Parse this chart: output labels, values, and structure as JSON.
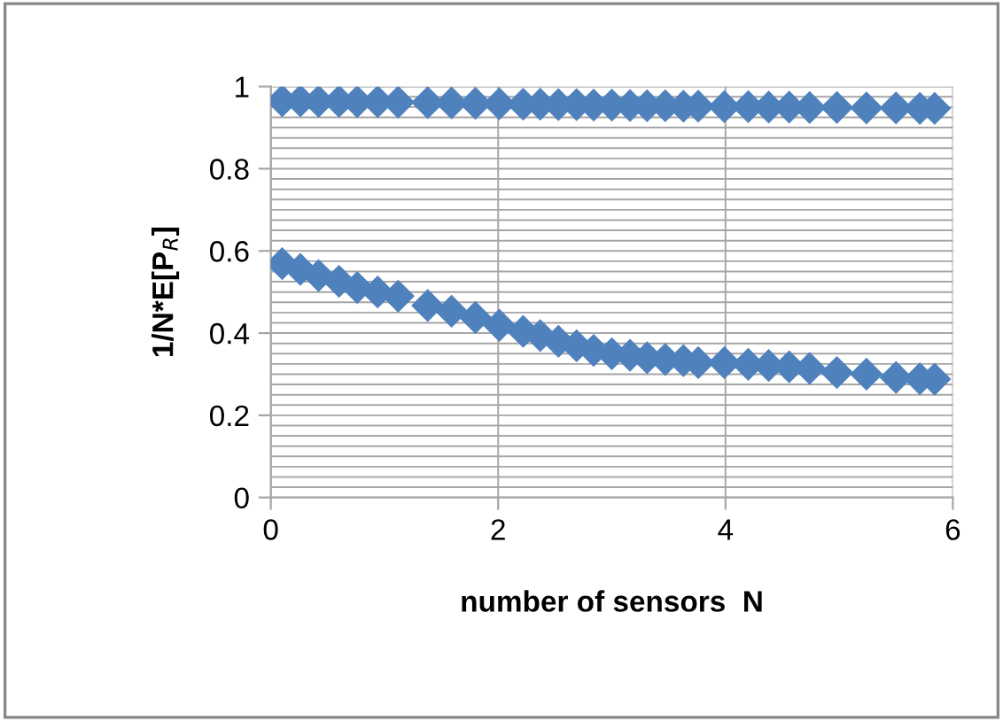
{
  "chart_data": {
    "type": "scatter",
    "xlabel": "number of sensors  N",
    "ylabel": "1/N*E[P$_{R}$]",
    "xlim": [
      0,
      6
    ],
    "ylim": [
      0,
      1
    ],
    "xticks": [
      0,
      2,
      4,
      6
    ],
    "yticks": [
      0,
      0.2,
      0.4,
      0.6,
      0.8,
      1
    ],
    "grid": true,
    "marker": "diamond",
    "legend": false,
    "x": [
      0.1,
      0.26,
      0.42,
      0.6,
      0.76,
      0.94,
      1.12,
      1.38,
      1.59,
      1.8,
      2.01,
      2.22,
      2.37,
      2.53,
      2.69,
      2.84,
      3.0,
      3.16,
      3.31,
      3.47,
      3.63,
      3.76,
      3.99,
      4.2,
      4.38,
      4.56,
      4.74,
      4.98,
      5.24,
      5.5,
      5.71,
      5.84
    ],
    "series": [
      {
        "color": "#4f81bd",
        "values": [
          0.965,
          0.965,
          0.964,
          0.964,
          0.963,
          0.963,
          0.962,
          0.961,
          0.96,
          0.959,
          0.958,
          0.957,
          0.957,
          0.956,
          0.956,
          0.955,
          0.955,
          0.954,
          0.953,
          0.953,
          0.952,
          0.952,
          0.951,
          0.951,
          0.95,
          0.95,
          0.949,
          0.949,
          0.948,
          0.948,
          0.947,
          0.947
        ]
      },
      {
        "color": "#4f81bd",
        "values": [
          0.569,
          0.555,
          0.54,
          0.526,
          0.511,
          0.5,
          0.49,
          0.467,
          0.453,
          0.438,
          0.419,
          0.404,
          0.394,
          0.38,
          0.369,
          0.358,
          0.35,
          0.346,
          0.34,
          0.336,
          0.333,
          0.328,
          0.328,
          0.324,
          0.321,
          0.318,
          0.314,
          0.304,
          0.3,
          0.292,
          0.289,
          0.288
        ]
      }
    ]
  }
}
